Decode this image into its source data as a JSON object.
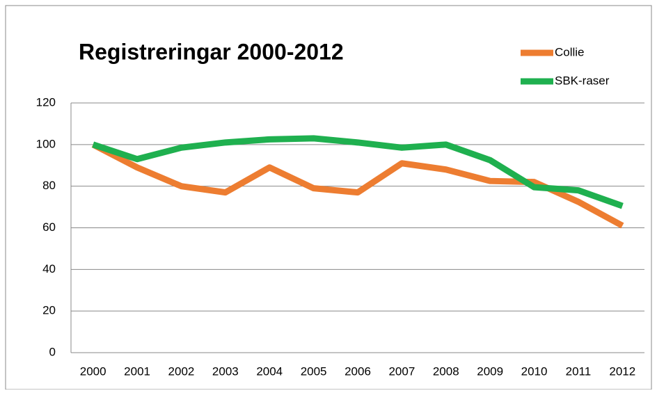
{
  "chart_data": {
    "type": "line",
    "title": "Registreringar 2000-2012",
    "categories": [
      "2000",
      "2001",
      "2002",
      "2003",
      "2004",
      "2005",
      "2006",
      "2007",
      "2008",
      "2009",
      "2010",
      "2011",
      "2012"
    ],
    "series": [
      {
        "name": "Collie",
        "color": "#ed7d31",
        "values": [
          100,
          89,
          80,
          77,
          89,
          79,
          77,
          91,
          88,
          82.5,
          82,
          72.5,
          61
        ]
      },
      {
        "name": "SBK-raser",
        "color": "#1fb04f",
        "values": [
          100,
          93,
          98.5,
          101,
          102.5,
          103,
          101,
          98.5,
          100,
          92.5,
          79.5,
          78,
          70.5
        ]
      }
    ],
    "ylim": [
      0,
      120
    ],
    "yticks": [
      0,
      20,
      40,
      60,
      80,
      100,
      120
    ],
    "grid": true,
    "legend": "top-right"
  }
}
